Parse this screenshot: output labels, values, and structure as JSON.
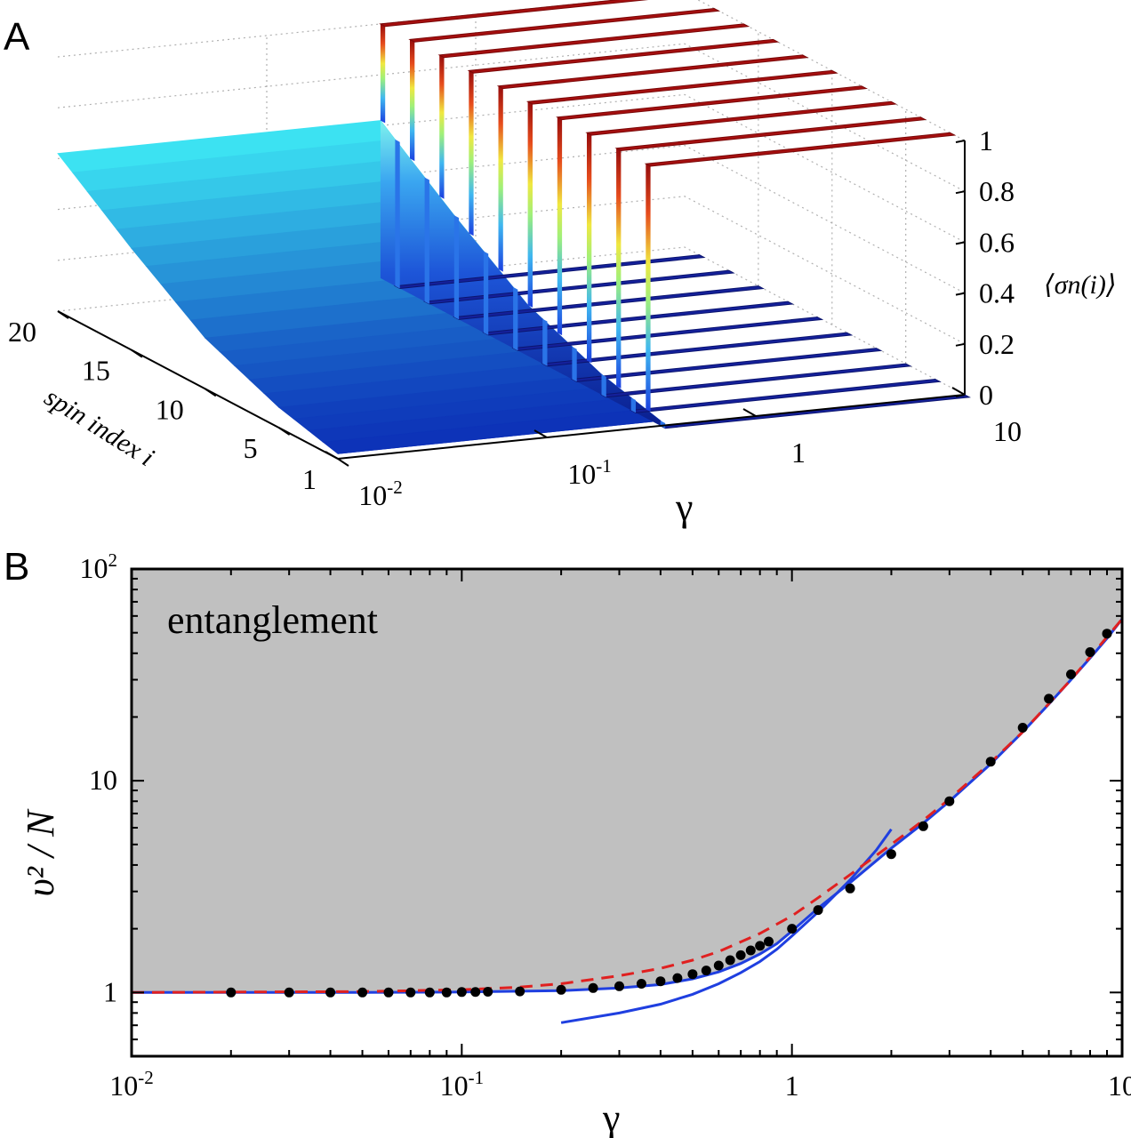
{
  "panels": {
    "a": {
      "label": "A",
      "chart_data": {
        "type": "surface3d",
        "xlabel": "γ",
        "ylabel": "spin index i",
        "zlabel": "⟨σn(i)⟩",
        "x_scale": "log",
        "xlim": [
          0.01,
          10
        ],
        "ylim": [
          1,
          20
        ],
        "zlim": [
          0,
          1
        ],
        "x_ticks": [
          {
            "v": 0.01,
            "label": "10",
            "exp": "-2"
          },
          {
            "v": 0.1,
            "label": "10",
            "exp": "-1"
          },
          {
            "v": 1,
            "label": "1",
            "exp": ""
          },
          {
            "v": 10,
            "label": "10",
            "exp": ""
          }
        ],
        "y_ticks": [
          1,
          5,
          10,
          15,
          20
        ],
        "z_ticks": [
          "0",
          "0.2",
          "0.4",
          "0.6",
          "0.8",
          "1"
        ],
        "z_ticks_values": [
          0,
          0.2,
          0.4,
          0.6,
          0.8,
          1
        ],
        "surface": {
          "description_values": "smooth region for γ < ~0.3: value rises from ~0 at i=1 to ~0.6 at i=20; step region for γ > ~0.3 alternates between 0 and 1 across spin index",
          "smooth_gamma_max": 0.35,
          "smooth_profile_i": [
            1,
            5,
            10,
            15,
            20
          ],
          "smooth_profile_value": [
            0.02,
            0.08,
            0.2,
            0.4,
            0.62
          ],
          "high_ridges_i": [
            20,
            18,
            16,
            14,
            12,
            10,
            8,
            6,
            4,
            2
          ],
          "low_ridges_i": [
            19,
            17,
            15,
            13,
            11,
            9,
            7,
            5,
            3,
            1
          ]
        },
        "colormap": "jet"
      }
    },
    "b": {
      "label": "B",
      "annotation": "entanglement",
      "chart_data": {
        "type": "line",
        "x_scale": "log",
        "y_scale": "log",
        "xlim": [
          0.01,
          10
        ],
        "ylim": [
          0.5,
          100
        ],
        "xlabel": "γ",
        "ylabel": "υ² / N",
        "x_ticks": [
          {
            "v": 0.01,
            "label": "10",
            "exp": "-2"
          },
          {
            "v": 0.1,
            "label": "10",
            "exp": "-1"
          },
          {
            "v": 1,
            "label": "1",
            "exp": ""
          },
          {
            "v": 10,
            "label": "10",
            "exp": ""
          }
        ],
        "y_ticks": [
          {
            "v": 1,
            "label": "1",
            "exp": ""
          },
          {
            "v": 10,
            "label": "10",
            "exp": ""
          },
          {
            "v": 100,
            "label": "10",
            "exp": "2"
          }
        ],
        "shaded_region": "above blue curve",
        "series": [
          {
            "kind": "line-blue-exact",
            "color": "#1f3fe0",
            "x": [
              0.01,
              0.05,
              0.1,
              0.2,
              0.3,
              0.4,
              0.5,
              0.6,
              0.7,
              0.8,
              0.9,
              1.0,
              1.2,
              1.5,
              2.0,
              2.5,
              3.0,
              4.0,
              5.0,
              6.0,
              7.0,
              8.0,
              9.0,
              10.0
            ],
            "y": [
              1.0,
              1.001,
              1.005,
              1.02,
              1.05,
              1.09,
              1.16,
              1.25,
              1.37,
              1.52,
              1.7,
              1.95,
              2.5,
              3.3,
              4.8,
              6.3,
              8.0,
              12.0,
              17.0,
              23.0,
              30.0,
              38.0,
              47.0,
              58.0
            ]
          },
          {
            "kind": "line-blue-approx",
            "color": "#1f3fe0",
            "x": [
              0.2,
              0.3,
              0.4,
              0.5,
              0.6,
              0.7,
              0.8,
              0.9,
              1.0,
              1.2,
              1.5,
              1.8,
              2.0
            ],
            "y": [
              0.72,
              0.8,
              0.88,
              0.98,
              1.1,
              1.24,
              1.4,
              1.6,
              1.85,
              2.4,
              3.4,
              4.7,
              5.9
            ]
          },
          {
            "kind": "dashed-red",
            "color": "#e02020",
            "x": [
              0.01,
              0.05,
              0.1,
              0.15,
              0.2,
              0.3,
              0.4,
              0.5,
              0.6,
              0.8,
              1.0,
              1.2,
              1.5,
              2.0,
              2.5,
              3.0,
              4.0,
              5.0,
              7.0,
              10.0
            ],
            "y": [
              1.0,
              1.01,
              1.03,
              1.06,
              1.1,
              1.2,
              1.3,
              1.42,
              1.56,
              1.9,
              2.3,
              2.8,
              3.6,
              5.0,
              6.5,
              8.2,
              12.2,
              17.0,
              30.0,
              58.0
            ]
          },
          {
            "kind": "markers",
            "color": "#000000",
            "x": [
              0.02,
              0.03,
              0.04,
              0.05,
              0.06,
              0.07,
              0.08,
              0.09,
              0.1,
              0.11,
              0.12,
              0.15,
              0.2,
              0.25,
              0.3,
              0.35,
              0.4,
              0.45,
              0.5,
              0.55,
              0.6,
              0.65,
              0.7,
              0.75,
              0.8,
              0.85,
              1.0,
              1.2,
              1.5,
              2.0,
              2.5,
              3.0,
              4.0,
              5.0,
              6.0,
              7.0,
              8.0,
              9.0
            ],
            "y": [
              1.0,
              1.0,
              1.0,
              1.0,
              1.0,
              1.0,
              1.0,
              1.0,
              1.005,
              1.006,
              1.008,
              1.012,
              1.03,
              1.05,
              1.07,
              1.1,
              1.13,
              1.17,
              1.22,
              1.27,
              1.34,
              1.42,
              1.5,
              1.58,
              1.66,
              1.74,
              2.0,
              2.45,
              3.1,
              4.5,
              6.1,
              8.0,
              12.3,
              17.8,
              24.4,
              31.8,
              40.5,
              49.5
            ]
          }
        ]
      }
    }
  }
}
